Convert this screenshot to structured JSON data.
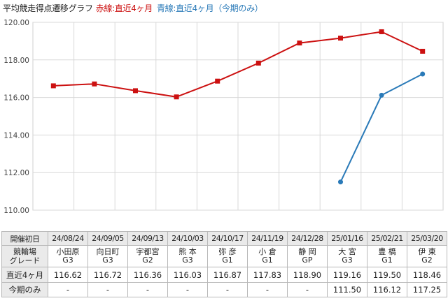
{
  "title": {
    "main": "平均競走得点遷移グラフ",
    "red": "赤線:直近4ヶ月",
    "blue": "青線:直近4ヶ月（今期のみ）"
  },
  "colors": {
    "red": "#cc1111",
    "blue": "#2a7ab8",
    "grid": "#d8d8d8"
  },
  "chart_data": {
    "type": "line",
    "categories": [
      "24/08/24",
      "24/09/05",
      "24/09/13",
      "24/10/03",
      "24/10/17",
      "24/11/19",
      "24/12/28",
      "25/01/16",
      "25/02/21",
      "25/03/20"
    ],
    "ylim": [
      110.0,
      120.0
    ],
    "yticks": [
      "110.00",
      "112.00",
      "114.00",
      "116.00",
      "118.00",
      "120.00"
    ],
    "grid": true,
    "series": [
      {
        "name": "赤線:直近4ヶ月",
        "color": "#cc1111",
        "marker": "square",
        "values": [
          116.62,
          116.72,
          116.36,
          116.03,
          116.87,
          117.83,
          118.9,
          119.16,
          119.5,
          118.46
        ]
      },
      {
        "name": "青線:直近4ヶ月（今期のみ）",
        "color": "#2a7ab8",
        "marker": "circle",
        "values": [
          null,
          null,
          null,
          null,
          null,
          null,
          null,
          111.5,
          116.12,
          117.25
        ]
      }
    ]
  },
  "table": {
    "row_labels": {
      "date": "開催初日",
      "venue1": "競輪場",
      "venue2": "グレード",
      "recent": "直近4ヶ月",
      "current": "今期のみ"
    },
    "columns": [
      {
        "date": "24/08/24",
        "venue": "小田原",
        "grade": "G3",
        "recent": "116.62",
        "current": "-"
      },
      {
        "date": "24/09/05",
        "venue": "向日町",
        "grade": "G3",
        "recent": "116.72",
        "current": "-"
      },
      {
        "date": "24/09/13",
        "venue": "宇都宮",
        "grade": "G2",
        "recent": "116.36",
        "current": "-"
      },
      {
        "date": "24/10/03",
        "venue": "熊 本",
        "grade": "G3",
        "recent": "116.03",
        "current": "-"
      },
      {
        "date": "24/10/17",
        "venue": "弥 彦",
        "grade": "G1",
        "recent": "116.87",
        "current": "-"
      },
      {
        "date": "24/11/19",
        "venue": "小 倉",
        "grade": "G1",
        "recent": "117.83",
        "current": "-"
      },
      {
        "date": "24/12/28",
        "venue": "静 岡",
        "grade": "GP",
        "recent": "118.90",
        "current": "-"
      },
      {
        "date": "25/01/16",
        "venue": "大 宮",
        "grade": "G3",
        "recent": "119.16",
        "current": "111.50"
      },
      {
        "date": "25/02/21",
        "venue": "豊 橋",
        "grade": "G1",
        "recent": "119.50",
        "current": "116.12"
      },
      {
        "date": "25/03/20",
        "venue": "伊 東",
        "grade": "G2",
        "recent": "118.46",
        "current": "117.25"
      }
    ]
  }
}
